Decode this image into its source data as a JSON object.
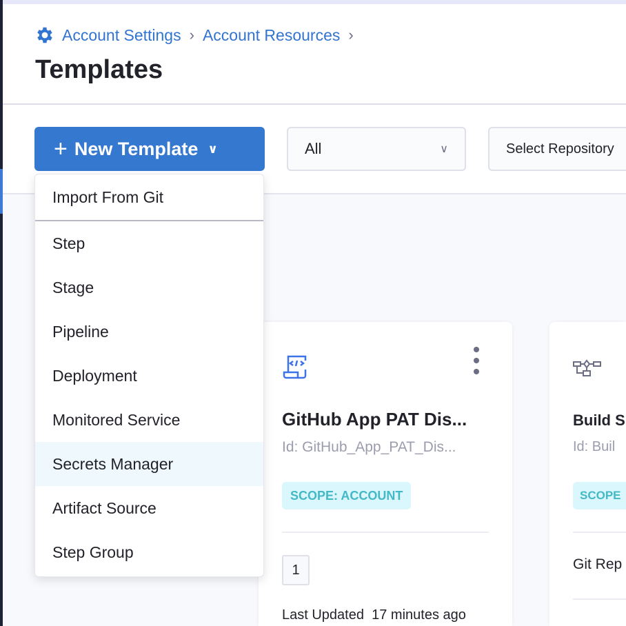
{
  "breadcrumbs": [
    "Account Settings",
    "Account Resources"
  ],
  "page_title": "Templates",
  "toolbar": {
    "new_template_label": "New Template",
    "type_filter": "All",
    "repo_select": "Select Repository"
  },
  "new_template_menu": [
    "Import From Git",
    "Step",
    "Stage",
    "Pipeline",
    "Deployment",
    "Monitored Service",
    "Secrets Manager",
    "Artifact Source",
    "Step Group"
  ],
  "highlighted_menu_item": "Secrets Manager",
  "cards": [
    {
      "name": "GitHub App PAT Dis...",
      "id": "Id: GitHub_App_PAT_Dis...",
      "scope": "SCOPE: ACCOUNT",
      "version": "1",
      "last_updated_label": "Last Updated",
      "last_updated": "17 minutes ago",
      "icon": "code-scroll-icon"
    },
    {
      "name": "Build S",
      "id": "Id: Buil",
      "scope": "SCOPE",
      "git_label": "Git Rep",
      "icon": "pipeline-flow-icon"
    }
  ],
  "colors": {
    "primary": "#3578d0",
    "scope_bg": "#d9f7fc",
    "scope_text": "#44b8c6"
  }
}
